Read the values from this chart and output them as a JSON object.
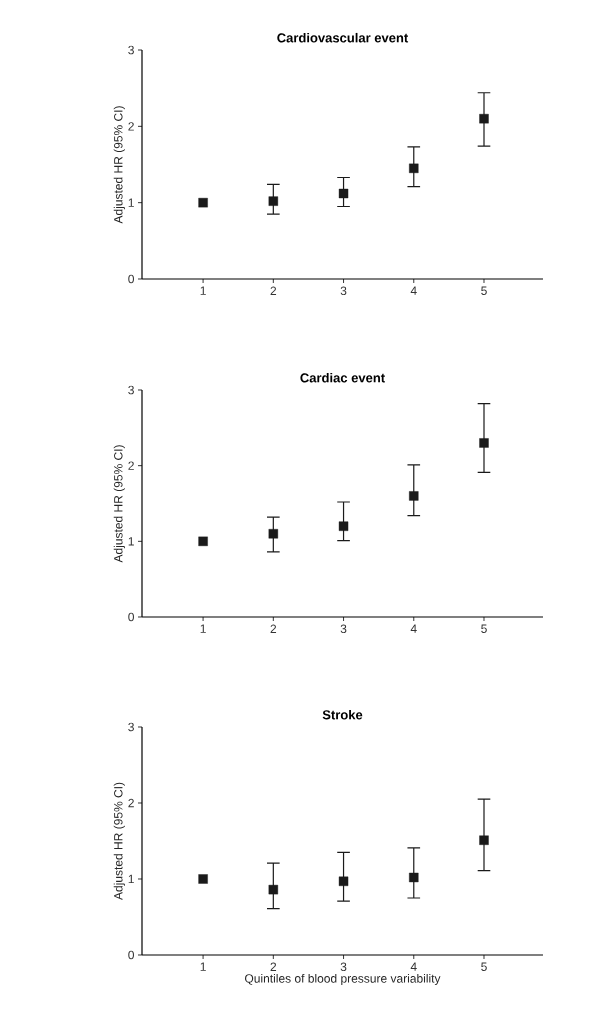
{
  "chart_data": [
    {
      "type": "scatter",
      "title": "Cardiovascular event",
      "ylabel": "Adjusted HR (95% CI)",
      "categories": [
        "1",
        "2",
        "3",
        "4",
        "5"
      ],
      "values": [
        1.0,
        1.02,
        1.12,
        1.45,
        2.1
      ],
      "errors": [
        null,
        [
          0.85,
          1.24
        ],
        [
          0.95,
          1.33
        ],
        [
          1.21,
          1.73
        ],
        [
          1.74,
          2.44
        ]
      ],
      "color": "#1a1a1a",
      "marker": "square",
      "ylim": [
        0,
        3
      ],
      "yticks": [
        0,
        1,
        2,
        3
      ],
      "grid": false
    },
    {
      "type": "scatter",
      "title": "Cardiac event",
      "ylabel": "Adjusted HR (95% CI)",
      "categories": [
        "1",
        "2",
        "3",
        "4",
        "5"
      ],
      "values": [
        1.0,
        1.1,
        1.2,
        1.6,
        2.3
      ],
      "errors": [
        null,
        [
          0.86,
          1.32
        ],
        [
          1.01,
          1.52
        ],
        [
          1.34,
          2.01
        ],
        [
          1.91,
          2.82
        ]
      ],
      "color": "#1a1a1a",
      "marker": "square",
      "ylim": [
        0,
        3
      ],
      "yticks": [
        0,
        1,
        2,
        3
      ],
      "grid": false
    },
    {
      "type": "scatter",
      "title": "Stroke",
      "ylabel": "Adjusted HR (95% CI)",
      "xlabel": "Quintiles of blood pressure variability",
      "categories": [
        "1",
        "2",
        "3",
        "4",
        "5"
      ],
      "values": [
        1.0,
        0.86,
        0.97,
        1.02,
        1.51
      ],
      "errors": [
        null,
        [
          0.61,
          1.21
        ],
        [
          0.71,
          1.35
        ],
        [
          0.75,
          1.41
        ],
        [
          1.11,
          2.05
        ]
      ],
      "color": "#1a1a1a",
      "marker": "square",
      "ylim": [
        0,
        3
      ],
      "yticks": [
        0,
        1,
        2,
        3
      ],
      "grid": false
    }
  ]
}
